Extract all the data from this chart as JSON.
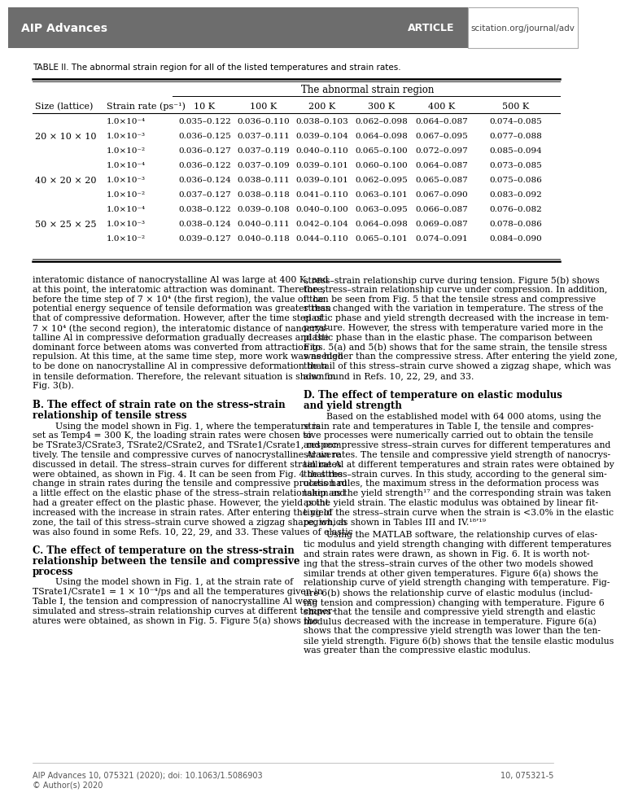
{
  "header_bg": "#6d6d6d",
  "header_text_left": "AIP Advances",
  "header_text_center": "ARTICLE",
  "header_text_right": "scitation.org/journal/adv",
  "table_caption": "TABLE II. The abnormal strain region for all of the listed temperatures and strain rates.",
  "table_header_group": "The abnormal strain region",
  "table_col1": "Size (lattice)",
  "table_col2": "Strain rate (ps−1)",
  "table_temps": [
    "10 K",
    "100 K",
    "200 K",
    "300 K",
    "400 K",
    "500 K"
  ],
  "table_data": [
    {
      "size": "20 × 10 × 10",
      "rates": [
        "1.0×10⁻⁴",
        "1.0×10⁻³",
        "1.0×10⁻²"
      ],
      "vals": [
        [
          "0.035–0.122",
          "0.036–0.110",
          "0.038–0.103",
          "0.062–0.098",
          "0.064–0.087",
          "0.074–0.085"
        ],
        [
          "0.036–0.125",
          "0.037–0.111",
          "0.039–0.104",
          "0.064–0.098",
          "0.067–0.095",
          "0.077–0.088"
        ],
        [
          "0.036–0.127",
          "0.037–0.119",
          "0.040–0.110",
          "0.065–0.100",
          "0.072–0.097",
          "0.085–0.094"
        ]
      ]
    },
    {
      "size": "40 × 20 × 20",
      "rates": [
        "1.0×10⁻⁴",
        "1.0×10⁻³",
        "1.0×10⁻²"
      ],
      "vals": [
        [
          "0.036–0.122",
          "0.037–0.109",
          "0.039–0.101",
          "0.060–0.100",
          "0.064–0.087",
          "0.073–0.085"
        ],
        [
          "0.036–0.124",
          "0.038–0.111",
          "0.039–0.101",
          "0.062–0.095",
          "0.065–0.087",
          "0.075–0.086"
        ],
        [
          "0.037–0.127",
          "0.038–0.118",
          "0.041–0.110",
          "0.063–0.101",
          "0.067–0.090",
          "0.083–0.092"
        ]
      ]
    },
    {
      "size": "50 × 25 × 25",
      "rates": [
        "1.0×10⁻⁴",
        "1.0×10⁻³",
        "1.0×10⁻²"
      ],
      "vals": [
        [
          "0.038–0.122",
          "0.039–0.108",
          "0.040–0.100",
          "0.063–0.095",
          "0.066–0.087",
          "0.076–0.082"
        ],
        [
          "0.038–0.124",
          "0.040–0.111",
          "0.042–0.104",
          "0.064–0.098",
          "0.069–0.087",
          "0.078–0.086"
        ],
        [
          "0.039–0.127",
          "0.040–0.118",
          "0.044–0.110",
          "0.065–0.101",
          "0.074–0.091",
          "0.084–0.090"
        ]
      ]
    }
  ],
  "footer_left": "AIP Advances 10, 075321 (2020); doi: 10.1063/1.5086903",
  "footer_right": "10, 075321-5",
  "footer_copy": "© Author(s) 2020",
  "link_color": "#1a7fbf",
  "text_color": "#000000",
  "body_text_col1": [
    "interatomic distance of nanocrystalline Al was large at 400 K, and",
    "at this point, the interatomic attraction was dominant. Therefore,",
    "before the time step of 7 × 10⁴ (the first region), the value of the",
    "potential energy sequence of tensile deformation was greater than",
    "that of compressive deformation. However, after the time step of",
    "7 × 10⁴ (the second region), the interatomic distance of nanocrys-",
    "talline Al in compressive deformation gradually decreases and the",
    "dominant force between atoms was converted from attraction to",
    "repulsion. At this time, at the same time step, more work was needed",
    "to be done on nanocrystalline Al in compressive deformation than",
    "in tensile deformation. Therefore, the relevant situation is shown in",
    "Fig. 3(b)."
  ],
  "body_text_col1_B": [
    "        Using the model shown in Fig. 1, where the temperature is",
    "set as Temp4 = 300 K, the loading strain rates were chosen to",
    "be TSrate3/CSrate3, TSrate2/CSrate2, and TSrate1/Csrate1, respec-",
    "tively. The tensile and compressive curves of nanocrystalline Al were",
    "discussed in detail. The stress–strain curves for different strain rates",
    "were obtained, as shown in Fig. 4. It can be seen from Fig. 4 that the",
    "change in strain rates during the tensile and compressive process had",
    "a little effect on the elastic phase of the stress–strain relationship and",
    "had a greater effect on the plastic phase. However, the yield point",
    "increased with the increase in strain rates. After entering the yield",
    "zone, the tail of this stress–strain curve showed a zigzag shape, which",
    "was also found in some Refs. 10, 22, 29, and 33. These values of elastic"
  ],
  "body_text_col1_C_title1": "C. The effect of temperature on the stress-strain",
  "body_text_col1_C_title2": "relationship between the tensile and compressive",
  "body_text_col1_C_title3": "process",
  "body_text_col1_C": [
    "        Using the model shown in Fig. 1, at the strain rate of",
    "TSrate1/Csrate1 = 1 × 10⁻⁴/ps and all the temperatures given in",
    "Table I, the tension and compression of nanocrystalline Al were",
    "simulated and stress–strain relationship curves at different temper-",
    "atures were obtained, as shown in Fig. 5. Figure 5(a) shows the"
  ],
  "body_text_col2": [
    "stress–strain relationship curve during tension. Figure 5(b) shows",
    "the stress–strain relationship curve under compression. In addition,",
    "it can be seen from Fig. 5 that the tensile stress and compressive",
    "stress changed with the variation in temperature. The stress of the",
    "elastic phase and yield strength decreased with the increase in tem-",
    "perature. However, the stress with temperature varied more in the",
    "plastic phase than in the elastic phase. The comparison between",
    "Figs. 5(a) and 5(b) shows that for the same strain, the tensile stress",
    "was higher than the compressive stress. After entering the yield zone,",
    "the tail of this stress–strain curve showed a zigzag shape, which was",
    "also found in Refs. 10, 22, 29, and 33."
  ],
  "body_text_col2_D": [
    "        Based on the established model with 64 000 atoms, using the",
    "strain rate and temperatures in Table I, the tensile and compres-",
    "sive processes were numerically carried out to obtain the tensile",
    "and compressive stress–strain curves for different temperatures and",
    "strain rates. The tensile and compressive yield strength of nanocrys-",
    "talline Al at different temperatures and strain rates were obtained by",
    "the stress–strain curves. In this study, according to the general sim-",
    "ulation rules, the maximum stress in the deformation process was",
    "taken as the yield strength¹⁷ and the corresponding strain was taken",
    "as the yield strain. The elastic modulus was obtained by linear fit-",
    "ting of the stress–strain curve when the strain is <3.0% in the elastic",
    "region, as shown in Tables III and IV.¹⁸’¹⁹"
  ],
  "body_text_col2_D2": [
    "        Using the MATLAB software, the relationship curves of elas-",
    "tic modulus and yield strength changing with different temperatures",
    "and strain rates were drawn, as shown in Fig. 6. It is worth not-",
    "ing that the stress–strain curves of the other two models showed",
    "similar trends at other given temperatures. Figure 6(a) shows the",
    "relationship curve of yield strength changing with temperature. Fig-",
    "ure 6(b) shows the relationship curve of elastic modulus (includ-",
    "ing tension and compression) changing with temperature. Figure 6",
    "shows that the tensile and compressive yield strength and elastic",
    "modulus decreased with the increase in temperature. Figure 6(a)",
    "shows that the compressive yield strength was lower than the ten-",
    "sile yield strength. Figure 6(b) shows that the tensile elastic modulus",
    "was greater than the compressive elastic modulus."
  ]
}
